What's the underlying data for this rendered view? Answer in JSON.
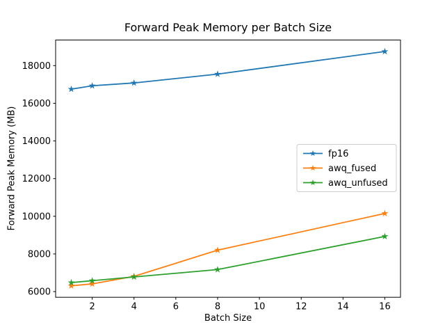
{
  "chart_data": {
    "type": "line",
    "title": "Forward Peak Memory per Batch Size",
    "xlabel": "Batch Size",
    "ylabel": "Forward Peak Memory (MB)",
    "x": [
      1,
      2,
      4,
      8,
      16
    ],
    "series": [
      {
        "name": "fp16",
        "color": "#1f77b4",
        "marker": "star",
        "values": [
          16750,
          16930,
          17080,
          17550,
          18750
        ]
      },
      {
        "name": "awq_fused",
        "color": "#ff7f0e",
        "marker": "star",
        "values": [
          6310,
          6410,
          6810,
          8200,
          10150
        ]
      },
      {
        "name": "awq_unfused",
        "color": "#2ca02c",
        "marker": "star",
        "values": [
          6480,
          6580,
          6780,
          7170,
          8930
        ]
      }
    ],
    "xticks": [
      2,
      4,
      6,
      8,
      10,
      12,
      14,
      16
    ],
    "yticks": [
      6000,
      8000,
      10000,
      12000,
      14000,
      16000,
      18000
    ],
    "xlim": [
      0.25,
      16.75
    ],
    "ylim": [
      5700,
      19360
    ],
    "grid": false,
    "legend": {
      "position": "center right",
      "entries": [
        "fp16",
        "awq_fused",
        "awq_unfused"
      ]
    },
    "colors": {
      "axis": "#000000",
      "background": "#ffffff",
      "legend_edge": "#cccccc"
    }
  }
}
